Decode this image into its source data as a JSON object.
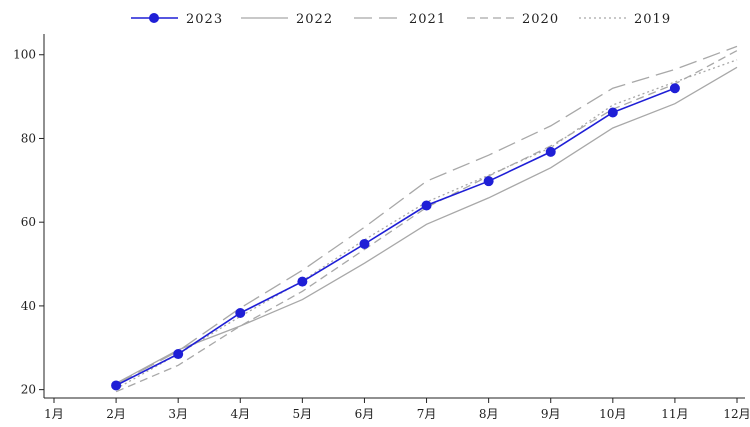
{
  "chart_data": {
    "type": "line",
    "title": "",
    "xlabel": "",
    "ylabel": "",
    "categories": [
      "1月",
      "2月",
      "3月",
      "4月",
      "5月",
      "6月",
      "7月",
      "8月",
      "9月",
      "10月",
      "11月",
      "12月"
    ],
    "ylim": [
      18,
      104
    ],
    "yticks": [
      20,
      40,
      60,
      80,
      100
    ],
    "grid": false,
    "legend_position": "top",
    "series": [
      {
        "name": "2023",
        "color": "#1f1fd6",
        "style": "solid-markers",
        "values": [
          null,
          21,
          28.5,
          38.3,
          45.8,
          54.8,
          64,
          69.8,
          76.8,
          86.2,
          92,
          null
        ]
      },
      {
        "name": "2022",
        "color": "#a8a8a8",
        "style": "solid",
        "values": [
          null,
          21.5,
          29.5,
          35.2,
          41.5,
          50.2,
          59.5,
          65.8,
          73,
          82.5,
          88.3,
          97
        ]
      },
      {
        "name": "2021",
        "color": "#a8a8a8",
        "style": "long-dash",
        "values": [
          null,
          21.3,
          29.2,
          39.5,
          48.5,
          58.8,
          69.8,
          76,
          83,
          92,
          96.5,
          102
        ]
      },
      {
        "name": "2020",
        "color": "#a8a8a8",
        "style": "dash",
        "values": [
          null,
          19.5,
          25.8,
          35.2,
          43.5,
          53.5,
          63.5,
          71,
          78.2,
          87,
          93,
          101
        ]
      },
      {
        "name": "2019",
        "color": "#a8a8a8",
        "style": "dot",
        "values": [
          null,
          20.2,
          28.5,
          37.5,
          46,
          55.8,
          64.8,
          71.2,
          77.8,
          88,
          93.5,
          98.8
        ]
      }
    ]
  }
}
